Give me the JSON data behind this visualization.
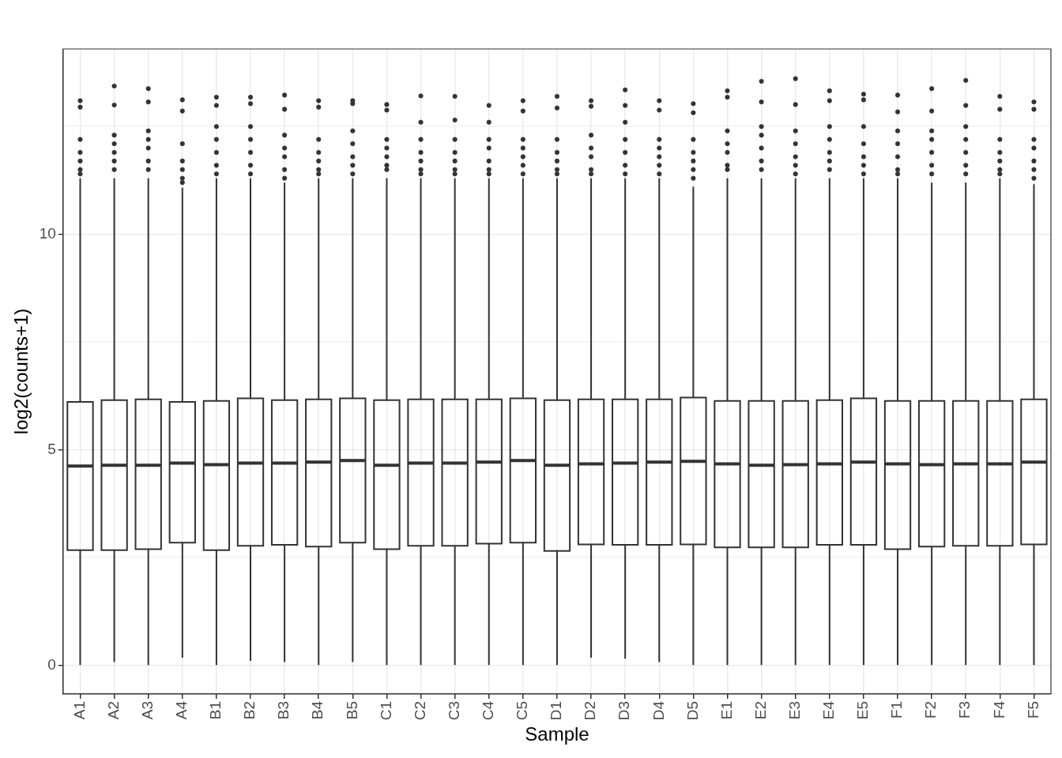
{
  "chart_data": {
    "type": "box",
    "xlabel": "Sample",
    "ylabel": "log2(counts+1)",
    "color": "#333333",
    "grid": true,
    "legend": false,
    "categories": [
      "A1",
      "A2",
      "A3",
      "A4",
      "B1",
      "B2",
      "B3",
      "B4",
      "B5",
      "C1",
      "C2",
      "C3",
      "C4",
      "C5",
      "D1",
      "D2",
      "D3",
      "D4",
      "D5",
      "E1",
      "E2",
      "E3",
      "E4",
      "E5",
      "F1",
      "F2",
      "F3",
      "F4",
      "F5"
    ],
    "ylim": [
      -0.67,
      14.3
    ],
    "yticks": [
      0,
      {
        "value": 2.5,
        "label": null
      },
      5,
      {
        "value": 7.5,
        "label": null
      },
      10,
      {
        "value": 12.5,
        "label": null
      }
    ],
    "boxes": [
      {
        "low": 0,
        "q1": 2.67,
        "median": 4.62,
        "q3": 6.11,
        "high": 11.3,
        "outliers": [
          13.1,
          12.95,
          12.2,
          11.9,
          11.7,
          11.5,
          11.4
        ]
      },
      {
        "low": 0.07,
        "q1": 2.67,
        "median": 4.64,
        "q3": 6.15,
        "high": 11.3,
        "outliers": [
          13.44,
          13.0,
          12.3,
          12.1,
          11.9,
          11.7,
          11.5
        ]
      },
      {
        "low": 0,
        "q1": 2.69,
        "median": 4.64,
        "q3": 6.17,
        "high": 11.3,
        "outliers": [
          13.38,
          13.07,
          12.4,
          12.2,
          12.0,
          11.7,
          11.5
        ]
      },
      {
        "low": 0.17,
        "q1": 2.84,
        "median": 4.69,
        "q3": 6.11,
        "high": 11.08,
        "outliers": [
          13.12,
          12.86,
          12.1,
          11.7,
          11.5,
          11.3,
          11.2
        ]
      },
      {
        "low": 0,
        "q1": 2.67,
        "median": 4.65,
        "q3": 6.13,
        "high": 11.3,
        "outliers": [
          13.18,
          12.99,
          12.5,
          12.2,
          11.9,
          11.6,
          11.4
        ]
      },
      {
        "low": 0.1,
        "q1": 2.77,
        "median": 4.69,
        "q3": 6.19,
        "high": 11.3,
        "outliers": [
          13.18,
          13.03,
          12.5,
          12.2,
          11.9,
          11.6,
          11.4
        ]
      },
      {
        "low": 0.07,
        "q1": 2.79,
        "median": 4.69,
        "q3": 6.15,
        "high": 11.2,
        "outliers": [
          13.23,
          12.9,
          12.3,
          12.0,
          11.8,
          11.5,
          11.3
        ]
      },
      {
        "low": 0,
        "q1": 2.75,
        "median": 4.71,
        "q3": 6.17,
        "high": 11.3,
        "outliers": [
          13.1,
          12.95,
          12.2,
          11.9,
          11.7,
          11.5,
          11.4
        ]
      },
      {
        "low": 0.07,
        "q1": 2.84,
        "median": 4.75,
        "q3": 6.19,
        "high": 11.3,
        "outliers": [
          13.1,
          13.03,
          12.4,
          12.1,
          11.8,
          11.6,
          11.4
        ]
      },
      {
        "low": 0,
        "q1": 2.69,
        "median": 4.64,
        "q3": 6.15,
        "high": 11.3,
        "outliers": [
          13.01,
          12.88,
          12.2,
          12.0,
          11.8,
          11.6,
          11.5
        ]
      },
      {
        "low": 0,
        "q1": 2.77,
        "median": 4.69,
        "q3": 6.17,
        "high": 11.3,
        "outliers": [
          13.21,
          12.6,
          12.2,
          11.9,
          11.7,
          11.5,
          11.4
        ]
      },
      {
        "low": 0,
        "q1": 2.77,
        "median": 4.69,
        "q3": 6.17,
        "high": 11.3,
        "outliers": [
          13.2,
          12.65,
          12.2,
          11.9,
          11.7,
          11.5,
          11.4
        ]
      },
      {
        "low": 0,
        "q1": 2.82,
        "median": 4.71,
        "q3": 6.17,
        "high": 11.3,
        "outliers": [
          12.99,
          12.6,
          12.2,
          12.0,
          11.7,
          11.5,
          11.4
        ]
      },
      {
        "low": 0,
        "q1": 2.84,
        "median": 4.75,
        "q3": 6.19,
        "high": 11.3,
        "outliers": [
          13.1,
          12.86,
          12.2,
          12.0,
          11.8,
          11.6,
          11.4
        ]
      },
      {
        "low": 0,
        "q1": 2.65,
        "median": 4.64,
        "q3": 6.15,
        "high": 11.3,
        "outliers": [
          13.2,
          12.93,
          12.2,
          11.9,
          11.7,
          11.5,
          11.4
        ]
      },
      {
        "low": 0.17,
        "q1": 2.8,
        "median": 4.67,
        "q3": 6.17,
        "high": 11.3,
        "outliers": [
          13.1,
          12.97,
          12.3,
          12.0,
          11.8,
          11.5,
          11.4
        ]
      },
      {
        "low": 0.15,
        "q1": 2.79,
        "median": 4.69,
        "q3": 6.17,
        "high": 11.3,
        "outliers": [
          13.35,
          12.99,
          12.6,
          12.2,
          11.9,
          11.6,
          11.4
        ]
      },
      {
        "low": 0.07,
        "q1": 2.79,
        "median": 4.71,
        "q3": 6.17,
        "high": 11.3,
        "outliers": [
          13.1,
          12.88,
          12.2,
          12.0,
          11.8,
          11.6,
          11.4
        ]
      },
      {
        "low": 0,
        "q1": 2.8,
        "median": 4.73,
        "q3": 6.21,
        "high": 11.1,
        "outliers": [
          13.03,
          12.82,
          12.2,
          11.9,
          11.7,
          11.5,
          11.3
        ]
      },
      {
        "low": 0,
        "q1": 2.73,
        "median": 4.67,
        "q3": 6.13,
        "high": 11.3,
        "outliers": [
          13.33,
          13.18,
          12.4,
          12.1,
          11.9,
          11.6,
          11.5
        ]
      },
      {
        "low": 0,
        "q1": 2.73,
        "median": 4.64,
        "q3": 6.13,
        "high": 11.3,
        "outliers": [
          13.55,
          13.07,
          12.5,
          12.3,
          12.0,
          11.7,
          11.5
        ]
      },
      {
        "low": 0,
        "q1": 2.73,
        "median": 4.65,
        "q3": 6.13,
        "high": 11.3,
        "outliers": [
          13.61,
          13.01,
          12.4,
          12.1,
          11.8,
          11.6,
          11.4
        ]
      },
      {
        "low": 0,
        "q1": 2.79,
        "median": 4.67,
        "q3": 6.15,
        "high": 11.3,
        "outliers": [
          13.33,
          13.1,
          12.5,
          12.2,
          11.9,
          11.7,
          11.5
        ]
      },
      {
        "low": 0,
        "q1": 2.79,
        "median": 4.71,
        "q3": 6.19,
        "high": 11.3,
        "outliers": [
          13.25,
          13.12,
          12.5,
          12.1,
          11.8,
          11.6,
          11.4
        ]
      },
      {
        "low": 0,
        "q1": 2.69,
        "median": 4.67,
        "q3": 6.13,
        "high": 11.3,
        "outliers": [
          13.23,
          12.84,
          12.4,
          12.1,
          11.8,
          11.5,
          11.4
        ]
      },
      {
        "low": 0,
        "q1": 2.75,
        "median": 4.65,
        "q3": 6.13,
        "high": 11.2,
        "outliers": [
          13.38,
          12.86,
          12.4,
          12.2,
          11.9,
          11.6,
          11.4
        ]
      },
      {
        "low": 0,
        "q1": 2.77,
        "median": 4.67,
        "q3": 6.13,
        "high": 11.2,
        "outliers": [
          13.57,
          12.99,
          12.5,
          12.2,
          11.9,
          11.6,
          11.4
        ]
      },
      {
        "low": 0,
        "q1": 2.77,
        "median": 4.67,
        "q3": 6.13,
        "high": 11.3,
        "outliers": [
          13.2,
          12.9,
          12.2,
          11.9,
          11.7,
          11.5,
          11.4
        ]
      },
      {
        "low": 0,
        "q1": 2.8,
        "median": 4.71,
        "q3": 6.17,
        "high": 11.16,
        "outliers": [
          13.07,
          12.9,
          12.2,
          12.0,
          11.7,
          11.5,
          11.3
        ]
      }
    ]
  }
}
